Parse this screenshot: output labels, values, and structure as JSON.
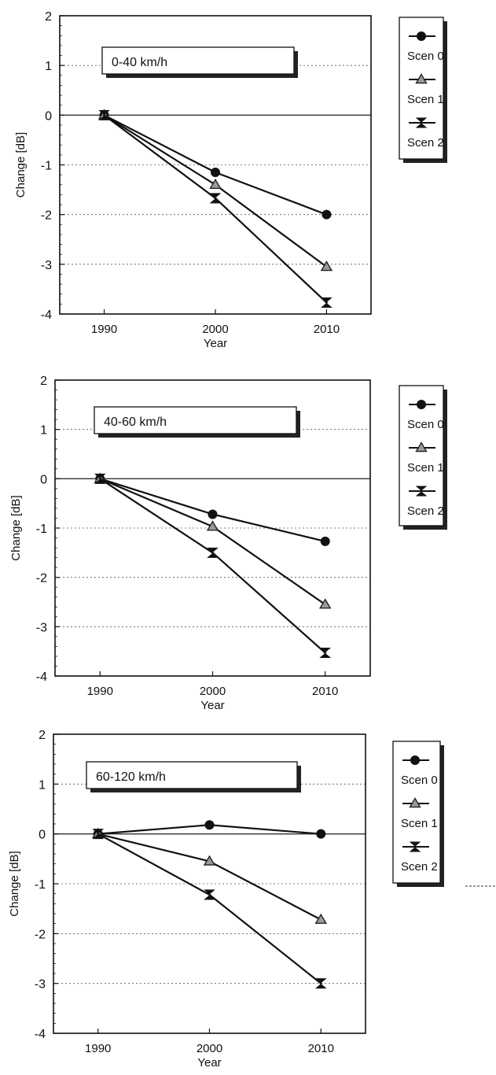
{
  "legend": {
    "entries": [
      "Scen 0",
      "Scen 1",
      "Scen 2"
    ]
  },
  "chart_data": [
    {
      "type": "line",
      "title": "0-40 km/h",
      "xlabel": "Year",
      "ylabel": "Change  [dB]",
      "x": [
        1990,
        2000,
        2010
      ],
      "xlim": [
        1986,
        2014
      ],
      "ylim": [
        -4,
        2
      ],
      "yticks": [
        2,
        1,
        0,
        -1,
        -2,
        -3,
        -4
      ],
      "xticks": [
        1990,
        2000,
        2010
      ],
      "grid": true,
      "legend_position": "right",
      "series": [
        {
          "name": "Scen 0",
          "marker": "circle",
          "values": [
            0,
            -1.15,
            -2.0
          ]
        },
        {
          "name": "Scen 1",
          "marker": "triangle",
          "values": [
            0,
            -1.4,
            -3.05
          ]
        },
        {
          "name": "Scen 2",
          "marker": "bowtie",
          "values": [
            0,
            -1.67,
            -3.77
          ]
        }
      ]
    },
    {
      "type": "line",
      "title": "40-60 km/h",
      "xlabel": "Year",
      "ylabel": "Change  [dB]",
      "x": [
        1990,
        2000,
        2010
      ],
      "xlim": [
        1986,
        2014
      ],
      "ylim": [
        -4,
        2
      ],
      "yticks": [
        2,
        1,
        0,
        -1,
        -2,
        -3,
        -4
      ],
      "xticks": [
        1990,
        2000,
        2010
      ],
      "grid": true,
      "legend_position": "right",
      "series": [
        {
          "name": "Scen 0",
          "marker": "circle",
          "values": [
            0,
            -0.72,
            -1.27
          ]
        },
        {
          "name": "Scen 1",
          "marker": "triangle",
          "values": [
            0,
            -0.97,
            -2.55
          ]
        },
        {
          "name": "Scen 2",
          "marker": "bowtie",
          "values": [
            0,
            -1.5,
            -3.53
          ]
        }
      ]
    },
    {
      "type": "line",
      "title": "60-120 km/h",
      "xlabel": "Year",
      "ylabel": "Change  [dB]",
      "x": [
        1990,
        2000,
        2010
      ],
      "xlim": [
        1986,
        2014
      ],
      "ylim": [
        -4,
        2
      ],
      "yticks": [
        2,
        1,
        0,
        -1,
        -2,
        -3,
        -4
      ],
      "xticks": [
        1990,
        2000,
        2010
      ],
      "grid": true,
      "legend_position": "right",
      "series": [
        {
          "name": "Scen 0",
          "marker": "circle",
          "values": [
            0,
            0.18,
            0
          ]
        },
        {
          "name": "Scen 1",
          "marker": "triangle",
          "values": [
            0,
            -0.55,
            -1.72
          ]
        },
        {
          "name": "Scen 2",
          "marker": "bowtie",
          "values": [
            0,
            -1.22,
            -3.0
          ]
        }
      ]
    }
  ]
}
